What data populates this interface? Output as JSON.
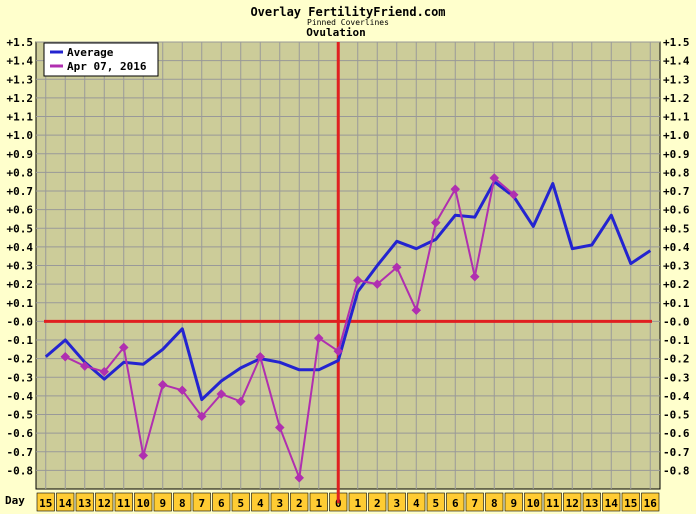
{
  "header": {
    "title": "Overlay FertilityFriend.com",
    "subtitle": "Pinned Coverlines",
    "subtitle2": "Ovulation"
  },
  "colors": {
    "background": "#FFFFCC",
    "plot_bg": "#CCCC99",
    "grid": "#999999",
    "axis_line": "#E02020",
    "average": "#2424D0",
    "series2": "#B02FB0",
    "day_box": "#FFCC33"
  },
  "chart_data": {
    "type": "line",
    "xlabel": "Day",
    "x": [
      "15",
      "14",
      "13",
      "12",
      "11",
      "10",
      "9",
      "8",
      "7",
      "6",
      "5",
      "4",
      "3",
      "2",
      "1",
      "0",
      "1",
      "2",
      "3",
      "4",
      "5",
      "6",
      "7",
      "8",
      "9",
      "10",
      "11",
      "12",
      "13",
      "14",
      "15",
      "16"
    ],
    "ylim": [
      -0.9,
      1.5
    ],
    "yticks": [
      "+1.5",
      "+1.4",
      "+1.3",
      "+1.2",
      "+1.1",
      "+1.0",
      "+0.9",
      "+0.8",
      "+0.7",
      "+0.6",
      "+0.5",
      "+0.4",
      "+0.3",
      "+0.2",
      "+0.1",
      "-0.0",
      "-0.1",
      "-0.2",
      "-0.3",
      "-0.4",
      "-0.5",
      "-0.6",
      "-0.7",
      "-0.8"
    ],
    "ytick_values": [
      1.5,
      1.4,
      1.3,
      1.2,
      1.1,
      1.0,
      0.9,
      0.8,
      0.7,
      0.6,
      0.5,
      0.4,
      0.3,
      0.2,
      0.1,
      0.0,
      -0.1,
      -0.2,
      -0.3,
      -0.4,
      -0.5,
      -0.6,
      -0.7,
      -0.8
    ],
    "ovulation_day_index": 15,
    "coverline_value": 0.0,
    "grid": true,
    "legend_placement": "top-left",
    "series": [
      {
        "name": "Average",
        "color": "#2424D0",
        "markers": false,
        "values": [
          -0.19,
          -0.1,
          -0.22,
          -0.31,
          -0.22,
          -0.23,
          -0.15,
          -0.04,
          -0.42,
          -0.32,
          -0.25,
          -0.2,
          -0.22,
          -0.26,
          -0.26,
          -0.21,
          0.16,
          0.3,
          0.43,
          0.39,
          0.44,
          0.57,
          0.56,
          0.75,
          0.67,
          0.51,
          0.74,
          0.39,
          0.41,
          0.57,
          0.31,
          0.38
        ]
      },
      {
        "name": "Apr 07, 2016",
        "color": "#B02FB0",
        "markers": true,
        "values": [
          null,
          -0.19,
          -0.24,
          -0.27,
          -0.14,
          -0.72,
          -0.34,
          -0.37,
          -0.51,
          -0.39,
          -0.43,
          -0.19,
          -0.57,
          -0.84,
          -0.09,
          -0.16,
          0.22,
          0.2,
          0.29,
          0.06,
          0.53,
          0.71,
          0.24,
          0.77,
          0.68,
          null,
          null,
          null,
          null,
          null,
          null,
          null
        ]
      }
    ]
  }
}
